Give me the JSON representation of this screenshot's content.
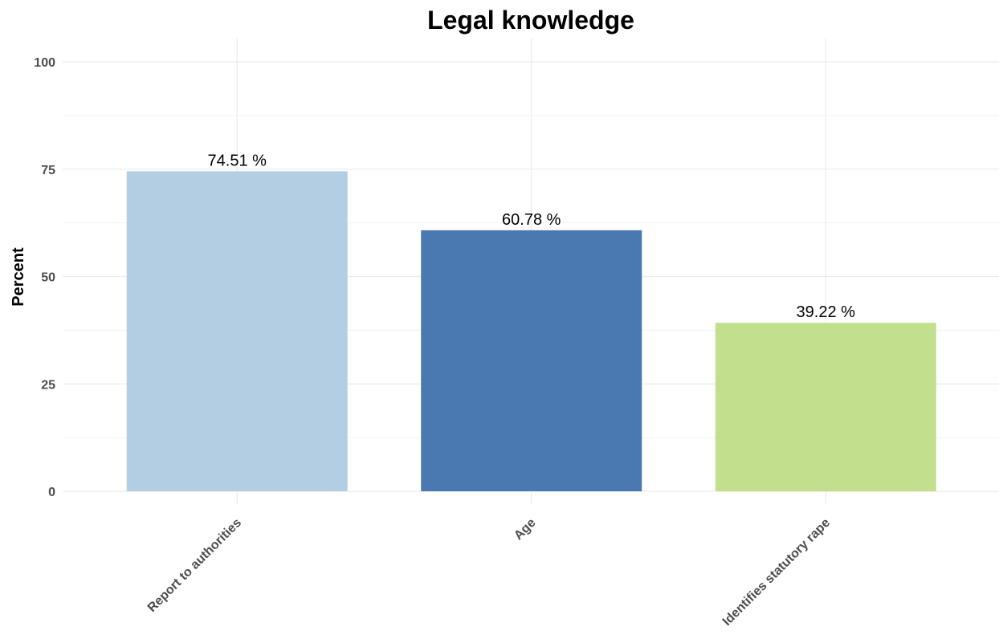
{
  "chart_data": {
    "type": "bar",
    "title": "Legal knowledge",
    "xlabel": "",
    "ylabel": "Percent",
    "categories": [
      "Report to authorities",
      "Age",
      "Identifies statutory rape"
    ],
    "values": [
      74.51,
      60.78,
      39.22
    ],
    "data_labels": [
      "74.51 %",
      "60.78 %",
      "39.22 %"
    ],
    "colors": [
      "#b3cde3",
      "#4a78b0",
      "#c2df8e"
    ],
    "ylim": [
      0,
      100
    ],
    "yticks": [
      0,
      25,
      50,
      75,
      100
    ],
    "grid": true,
    "legend": "none"
  }
}
